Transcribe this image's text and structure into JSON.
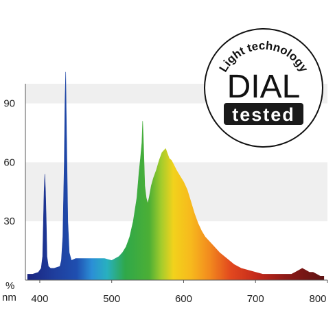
{
  "chart_data": {
    "type": "area",
    "title": "",
    "xlabel": "nm",
    "ylabel": "%",
    "xlim": [
      380,
      800
    ],
    "ylim": [
      0,
      100
    ],
    "x_ticks": [
      400,
      500,
      600,
      700,
      800
    ],
    "y_ticks": [
      30,
      60,
      90
    ],
    "grid_bands": true,
    "series": [
      {
        "x": [
          383,
          390,
          398,
          402,
          404,
          405,
          406,
          407,
          408,
          409,
          410,
          412,
          415,
          420,
          428,
          430,
          432,
          434,
          435,
          436,
          437,
          439,
          441,
          444,
          450,
          460,
          470,
          480,
          490,
          500,
          505,
          510,
          515,
          520,
          525,
          530,
          535,
          538,
          540,
          542,
          543,
          544,
          545,
          546,
          548,
          550,
          552,
          555,
          558,
          562,
          566,
          570,
          575,
          578,
          580,
          583,
          586,
          590,
          595,
          600,
          605,
          610,
          615,
          620,
          625,
          630,
          640,
          650,
          660,
          670,
          680,
          690,
          700,
          710,
          720,
          730,
          740,
          750,
          755,
          760,
          765,
          770,
          775,
          780,
          785,
          790,
          795
        ],
        "y": [
          3,
          3,
          4,
          6,
          12,
          30,
          45,
          54,
          45,
          30,
          12,
          7,
          6,
          6,
          7,
          10,
          22,
          60,
          90,
          106,
          80,
          30,
          14,
          10,
          11,
          11,
          11,
          11,
          11,
          10,
          11,
          12,
          14,
          17,
          22,
          30,
          42,
          55,
          62,
          70,
          81,
          72,
          60,
          48,
          42,
          39,
          42,
          48,
          52,
          56,
          61,
          65,
          67,
          64,
          62,
          61,
          59,
          56,
          53,
          50,
          46,
          40,
          34,
          29,
          25,
          22,
          18,
          14,
          11,
          8,
          6,
          5,
          4,
          3,
          3,
          3,
          3,
          3,
          4,
          5,
          6,
          5,
          4,
          4,
          3,
          2,
          2
        ]
      }
    ]
  },
  "badge": {
    "top_text": "Light technology",
    "main_text": "DIAL",
    "bottom_text": "tested"
  }
}
